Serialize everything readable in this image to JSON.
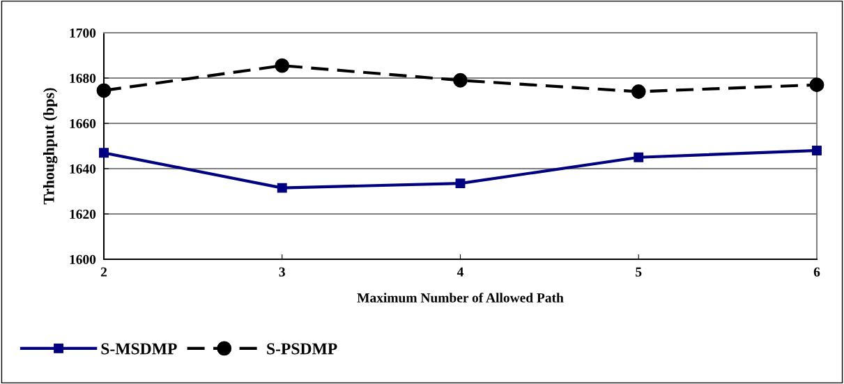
{
  "chart_data": {
    "type": "line",
    "xlabel": "Maximum Number of Allowed Path",
    "ylabel": "Trhoughput (bps)",
    "x": [
      2,
      3,
      4,
      5,
      6
    ],
    "series": [
      {
        "name": "S-MSDMP",
        "color": "#000080",
        "marker": "square",
        "line_style": "solid",
        "values": [
          1647,
          1631.5,
          1633.5,
          1645,
          1648
        ]
      },
      {
        "name": "S-PSDMP",
        "color": "#000000",
        "marker": "circle",
        "line_style": "dashed",
        "values": [
          1674.5,
          1685.5,
          1679,
          1674,
          1677
        ]
      }
    ],
    "xlim": [
      2,
      6
    ],
    "xticks": [
      2,
      3,
      4,
      5,
      6
    ],
    "ylim": [
      1600,
      1700
    ],
    "yticks": [
      1600,
      1620,
      1640,
      1660,
      1680,
      1700
    ],
    "grid": "y",
    "legend": "bottom left"
  }
}
